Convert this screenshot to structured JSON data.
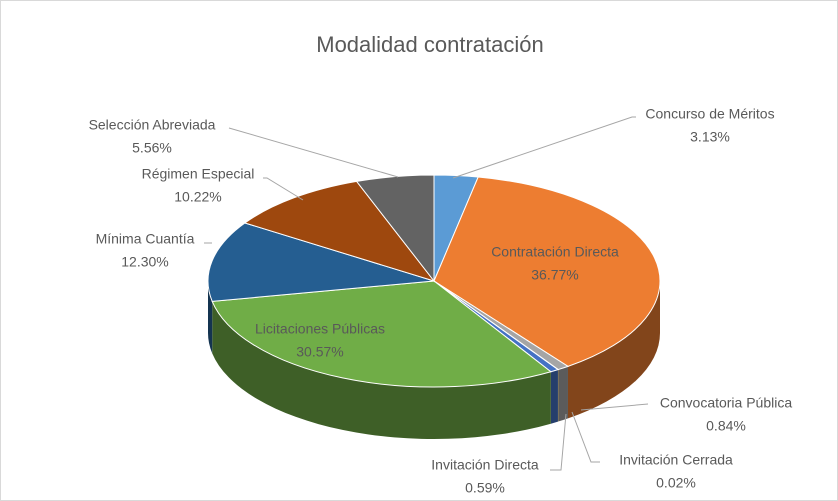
{
  "chart_data": {
    "type": "pie",
    "title": "Modalidad contratación",
    "categories": [
      "Concurso de Méritos",
      "Contratación Directa",
      "Convocatoria Pública",
      "Invitación Cerrada",
      "Invitación Directa",
      "Licitaciones Públicas",
      "Mínima Cuantía",
      "Régimen Especial",
      "Selección Abreviada"
    ],
    "values": [
      3.13,
      36.77,
      0.84,
      0.02,
      0.59,
      30.57,
      12.3,
      10.22,
      5.56
    ],
    "value_labels": [
      "3.13%",
      "36.77%",
      "0.84%",
      "0.02%",
      "0.59%",
      "30.57%",
      "12.30%",
      "10.22%",
      "5.56%"
    ],
    "colors": [
      "#5b9bd5",
      "#ed7d31",
      "#a5a5a5",
      "#ffc000",
      "#4472c4",
      "#70ad47",
      "#255e91",
      "#9e480e",
      "#636363"
    ]
  }
}
